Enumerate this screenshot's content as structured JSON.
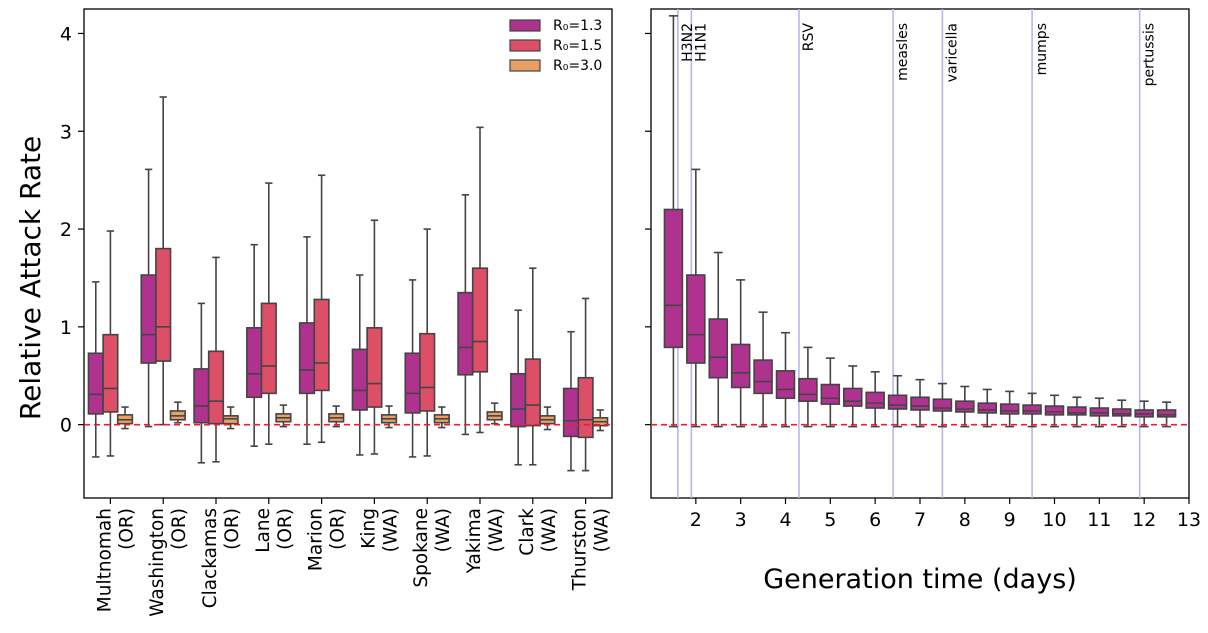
{
  "chart_data": [
    {
      "type": "box",
      "ylabel": "Relative Attack Rate",
      "ylim": [
        -0.75,
        4.25
      ],
      "yticks": [
        0,
        1,
        2,
        3,
        4
      ],
      "reference_line": {
        "y": 0,
        "color": "#e8222a",
        "style": "dashed"
      },
      "legend": {
        "placement": "top-right"
      },
      "series": [
        {
          "name": "R₀=1.3",
          "color": "#b0328f"
        },
        {
          "name": "R₀=1.5",
          "color": "#dc4f67"
        },
        {
          "name": "R₀=3.0",
          "color": "#e8a065"
        }
      ],
      "categories": [
        {
          "line1": "Multnomah",
          "line2": "(OR)",
          "boxes": [
            {
              "min": -0.33,
              "q1": 0.11,
              "median": 0.31,
              "q3": 0.73,
              "max": 1.46
            },
            {
              "min": -0.32,
              "q1": 0.13,
              "median": 0.37,
              "q3": 0.92,
              "max": 1.98
            },
            {
              "min": -0.04,
              "q1": 0.01,
              "median": 0.05,
              "q3": 0.1,
              "max": 0.18
            }
          ]
        },
        {
          "line1": "Washington",
          "line2": "(OR)",
          "boxes": [
            {
              "min": -0.02,
              "q1": 0.63,
              "median": 0.92,
              "q3": 1.53,
              "max": 2.61
            },
            {
              "min": 0.0,
              "q1": 0.65,
              "median": 1.0,
              "q3": 1.8,
              "max": 3.35
            },
            {
              "min": 0.02,
              "q1": 0.05,
              "median": 0.09,
              "q3": 0.14,
              "max": 0.23
            }
          ]
        },
        {
          "line1": "Clackamas",
          "line2": "(OR)",
          "boxes": [
            {
              "min": -0.39,
              "q1": 0.02,
              "median": 0.19,
              "q3": 0.57,
              "max": 1.24
            },
            {
              "min": -0.38,
              "q1": 0.01,
              "median": 0.24,
              "q3": 0.75,
              "max": 1.71
            },
            {
              "min": -0.04,
              "q1": 0.01,
              "median": 0.06,
              "q3": 0.09,
              "max": 0.18
            }
          ]
        },
        {
          "line1": "Lane",
          "line2": "(OR)",
          "boxes": [
            {
              "min": -0.22,
              "q1": 0.28,
              "median": 0.52,
              "q3": 0.99,
              "max": 1.84
            },
            {
              "min": -0.2,
              "q1": 0.32,
              "median": 0.6,
              "q3": 1.24,
              "max": 2.47
            },
            {
              "min": -0.02,
              "q1": 0.03,
              "median": 0.07,
              "q3": 0.11,
              "max": 0.2
            }
          ]
        },
        {
          "line1": "Marion",
          "line2": "(OR)",
          "boxes": [
            {
              "min": -0.2,
              "q1": 0.32,
              "median": 0.56,
              "q3": 1.04,
              "max": 1.92
            },
            {
              "min": -0.18,
              "q1": 0.35,
              "median": 0.63,
              "q3": 1.28,
              "max": 2.55
            },
            {
              "min": -0.02,
              "q1": 0.03,
              "median": 0.07,
              "q3": 0.11,
              "max": 0.19
            }
          ]
        },
        {
          "line1": "King",
          "line2": "(WA)",
          "boxes": [
            {
              "min": -0.31,
              "q1": 0.15,
              "median": 0.35,
              "q3": 0.77,
              "max": 1.53
            },
            {
              "min": -0.3,
              "q1": 0.18,
              "median": 0.42,
              "q3": 0.99,
              "max": 2.09
            },
            {
              "min": -0.03,
              "q1": 0.02,
              "median": 0.06,
              "q3": 0.1,
              "max": 0.19
            }
          ]
        },
        {
          "line1": "Spokane",
          "line2": "(WA)",
          "boxes": [
            {
              "min": -0.33,
              "q1": 0.12,
              "median": 0.32,
              "q3": 0.73,
              "max": 1.48
            },
            {
              "min": -0.32,
              "q1": 0.14,
              "median": 0.38,
              "q3": 0.93,
              "max": 2.0
            },
            {
              "min": -0.03,
              "q1": 0.02,
              "median": 0.06,
              "q3": 0.1,
              "max": 0.18
            }
          ]
        },
        {
          "line1": "Yakima",
          "line2": "(WA)",
          "boxes": [
            {
              "min": -0.1,
              "q1": 0.51,
              "median": 0.79,
              "q3": 1.35,
              "max": 2.35
            },
            {
              "min": -0.08,
              "q1": 0.54,
              "median": 0.85,
              "q3": 1.6,
              "max": 3.04
            },
            {
              "min": 0.01,
              "q1": 0.05,
              "median": 0.09,
              "q3": 0.13,
              "max": 0.22
            }
          ]
        },
        {
          "line1": "Clark",
          "line2": "(WA)",
          "boxes": [
            {
              "min": -0.41,
              "q1": -0.02,
              "median": 0.16,
              "q3": 0.52,
              "max": 1.17
            },
            {
              "min": -0.41,
              "q1": -0.01,
              "median": 0.2,
              "q3": 0.67,
              "max": 1.6
            },
            {
              "min": -0.05,
              "q1": 0.01,
              "median": 0.05,
              "q3": 0.09,
              "max": 0.18
            }
          ]
        },
        {
          "line1": "Thurston",
          "line2": "(WA)",
          "boxes": [
            {
              "min": -0.47,
              "q1": -0.12,
              "median": 0.04,
              "q3": 0.37,
              "max": 0.95
            },
            {
              "min": -0.47,
              "q1": -0.13,
              "median": 0.05,
              "q3": 0.48,
              "max": 1.29
            },
            {
              "min": -0.06,
              "q1": -0.01,
              "median": 0.03,
              "q3": 0.07,
              "max": 0.15
            }
          ]
        }
      ]
    },
    {
      "type": "box",
      "xlabel": "Generation time (days)",
      "xlim": [
        1.0,
        13.0
      ],
      "xticks": [
        2,
        3,
        4,
        5,
        6,
        7,
        8,
        9,
        10,
        11,
        12,
        13
      ],
      "ylim": [
        -0.75,
        4.25
      ],
      "box_color": "#b0328f",
      "reference_line": {
        "y": 0,
        "color": "#e8222a",
        "style": "dashed"
      },
      "disease_lines": [
        {
          "label": "H3N2",
          "x": 1.6
        },
        {
          "label": "H1N1",
          "x": 1.9
        },
        {
          "label": "RSV",
          "x": 4.3
        },
        {
          "label": "measles",
          "x": 6.4
        },
        {
          "label": "varicella",
          "x": 7.5
        },
        {
          "label": "mumps",
          "x": 9.5
        },
        {
          "label": "pertussis",
          "x": 11.9
        }
      ],
      "boxes": [
        {
          "x": 1.5,
          "min": -0.02,
          "q1": 0.79,
          "median": 1.22,
          "q3": 2.2,
          "max": 4.18
        },
        {
          "x": 2.0,
          "min": -0.02,
          "q1": 0.63,
          "median": 0.92,
          "q3": 1.53,
          "max": 2.61
        },
        {
          "x": 2.5,
          "min": -0.02,
          "q1": 0.48,
          "median": 0.69,
          "q3": 1.08,
          "max": 1.76
        },
        {
          "x": 3.0,
          "min": -0.02,
          "q1": 0.38,
          "median": 0.53,
          "q3": 0.82,
          "max": 1.48
        },
        {
          "x": 3.5,
          "min": -0.02,
          "q1": 0.32,
          "median": 0.44,
          "q3": 0.66,
          "max": 1.15
        },
        {
          "x": 4.0,
          "min": -0.02,
          "q1": 0.27,
          "median": 0.36,
          "q3": 0.55,
          "max": 0.94
        },
        {
          "x": 4.5,
          "min": -0.02,
          "q1": 0.24,
          "median": 0.31,
          "q3": 0.47,
          "max": 0.79
        },
        {
          "x": 5.0,
          "min": -0.02,
          "q1": 0.21,
          "median": 0.27,
          "q3": 0.41,
          "max": 0.68
        },
        {
          "x": 5.5,
          "min": -0.02,
          "q1": 0.19,
          "median": 0.24,
          "q3": 0.37,
          "max": 0.6
        },
        {
          "x": 6.0,
          "min": -0.02,
          "q1": 0.17,
          "median": 0.22,
          "q3": 0.33,
          "max": 0.54
        },
        {
          "x": 6.5,
          "min": -0.02,
          "q1": 0.16,
          "median": 0.2,
          "q3": 0.3,
          "max": 0.5
        },
        {
          "x": 7.0,
          "min": -0.02,
          "q1": 0.15,
          "median": 0.19,
          "q3": 0.28,
          "max": 0.46
        },
        {
          "x": 7.5,
          "min": -0.02,
          "q1": 0.14,
          "median": 0.17,
          "q3": 0.26,
          "max": 0.42
        },
        {
          "x": 8.0,
          "min": -0.02,
          "q1": 0.13,
          "median": 0.16,
          "q3": 0.24,
          "max": 0.39
        },
        {
          "x": 8.5,
          "min": -0.02,
          "q1": 0.12,
          "median": 0.15,
          "q3": 0.22,
          "max": 0.36
        },
        {
          "x": 9.0,
          "min": -0.02,
          "q1": 0.11,
          "median": 0.14,
          "q3": 0.21,
          "max": 0.34
        },
        {
          "x": 9.5,
          "min": -0.02,
          "q1": 0.11,
          "median": 0.14,
          "q3": 0.2,
          "max": 0.32
        },
        {
          "x": 10.0,
          "min": -0.02,
          "q1": 0.1,
          "median": 0.13,
          "q3": 0.19,
          "max": 0.3
        },
        {
          "x": 10.5,
          "min": -0.02,
          "q1": 0.1,
          "median": 0.12,
          "q3": 0.18,
          "max": 0.28
        },
        {
          "x": 11.0,
          "min": -0.02,
          "q1": 0.09,
          "median": 0.12,
          "q3": 0.17,
          "max": 0.27
        },
        {
          "x": 11.5,
          "min": -0.02,
          "q1": 0.09,
          "median": 0.11,
          "q3": 0.16,
          "max": 0.25
        },
        {
          "x": 12.0,
          "min": -0.02,
          "q1": 0.08,
          "median": 0.11,
          "q3": 0.15,
          "max": 0.24
        },
        {
          "x": 12.5,
          "min": -0.02,
          "q1": 0.08,
          "median": 0.1,
          "q3": 0.15,
          "max": 0.23
        }
      ]
    }
  ]
}
